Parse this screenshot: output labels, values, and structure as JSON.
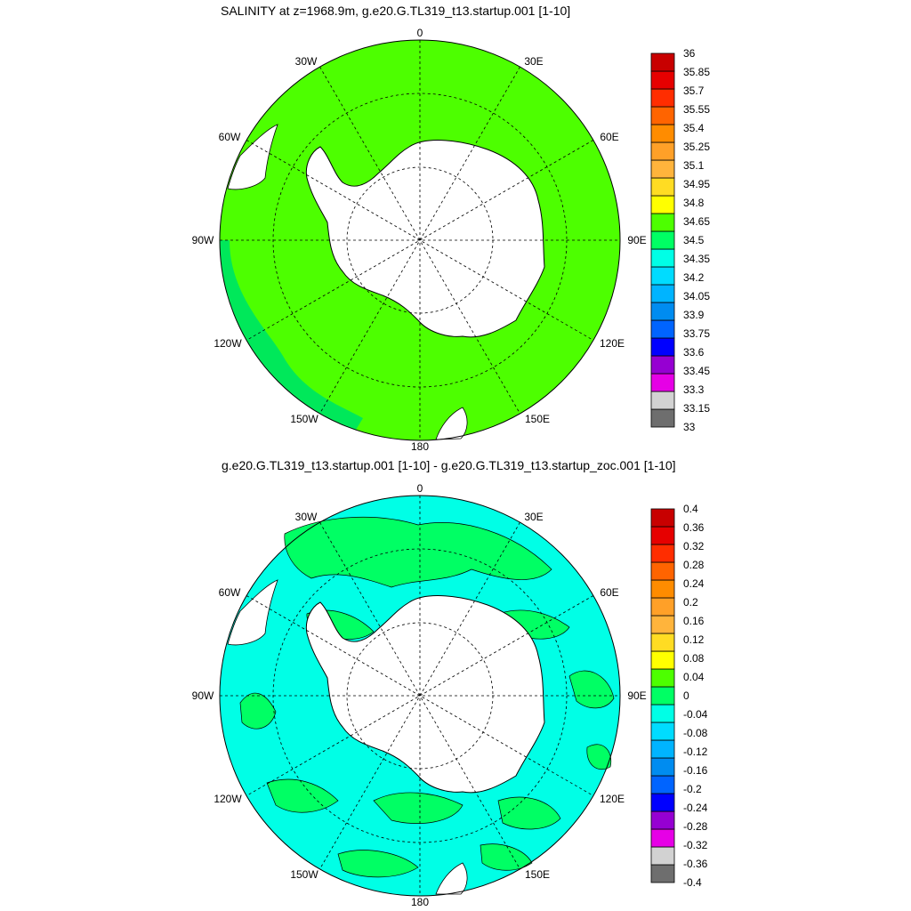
{
  "panels": [
    {
      "title": "SALINITY at z=1968.9m, g.e20.G.TL319_t13.startup.001 [1-10]",
      "lon_labels": {
        "l0": "0",
        "l30e": "30E",
        "l60e": "60E",
        "l90e": "90E",
        "l120e": "120E",
        "l150e": "150E",
        "l180": "180",
        "l150w": "150W",
        "l120w": "120W",
        "l90w": "90W",
        "l60w": "60W",
        "l30w": "30W"
      },
      "ocean_color": "#4dff00",
      "secondary_color": "#00e85a",
      "colorbar": {
        "colors": [
          "#6e6e6e",
          "#d2d2d2",
          "#e600e6",
          "#9600d2",
          "#0000ff",
          "#0064ff",
          "#008cf0",
          "#00b4ff",
          "#00dcff",
          "#00ffe6",
          "#00ff64",
          "#4dff00",
          "#ffff00",
          "#ffdc23",
          "#ffb43c",
          "#ffa028",
          "#ff8c00",
          "#ff6400",
          "#ff2d00",
          "#e60000",
          "#c80000"
        ],
        "labels": [
          "33",
          "33.15",
          "33.3",
          "33.45",
          "33.6",
          "33.75",
          "33.9",
          "34.05",
          "34.2",
          "34.35",
          "34.5",
          "34.65",
          "34.8",
          "34.95",
          "35.1",
          "35.25",
          "35.4",
          "35.55",
          "35.7",
          "35.85",
          "36"
        ]
      }
    },
    {
      "title": "g.e20.G.TL319_t13.startup.001 [1-10] - g.e20.G.TL319_t13.startup_zoc.001 [1-10]",
      "lon_labels": {
        "l0": "0",
        "l30e": "30E",
        "l60e": "60E",
        "l90e": "90E",
        "l120e": "120E",
        "l150e": "150E",
        "l180": "180",
        "l150w": "150W",
        "l120w": "120W",
        "l90w": "90W",
        "l60w": "60W",
        "l30w": "30W"
      },
      "ocean_color": "#00ffe6",
      "secondary_color": "#00ff64",
      "colorbar": {
        "colors": [
          "#6e6e6e",
          "#d2d2d2",
          "#e600e6",
          "#9600d2",
          "#0000ff",
          "#0064ff",
          "#008cf0",
          "#00b4ff",
          "#00dcff",
          "#00ffe6",
          "#00ff64",
          "#4dff00",
          "#ffff00",
          "#ffdc23",
          "#ffb43c",
          "#ffa028",
          "#ff8c00",
          "#ff6400",
          "#ff2d00",
          "#e60000",
          "#c80000"
        ],
        "labels": [
          "-0.4",
          "-0.36",
          "-0.32",
          "-0.28",
          "-0.24",
          "-0.2",
          "-0.16",
          "-0.12",
          "-0.08",
          "-0.04",
          "0",
          "0.04",
          "0.08",
          "0.12",
          "0.16",
          "0.2",
          "0.24",
          "0.28",
          "0.32",
          "0.36",
          "0.4"
        ]
      }
    }
  ]
}
